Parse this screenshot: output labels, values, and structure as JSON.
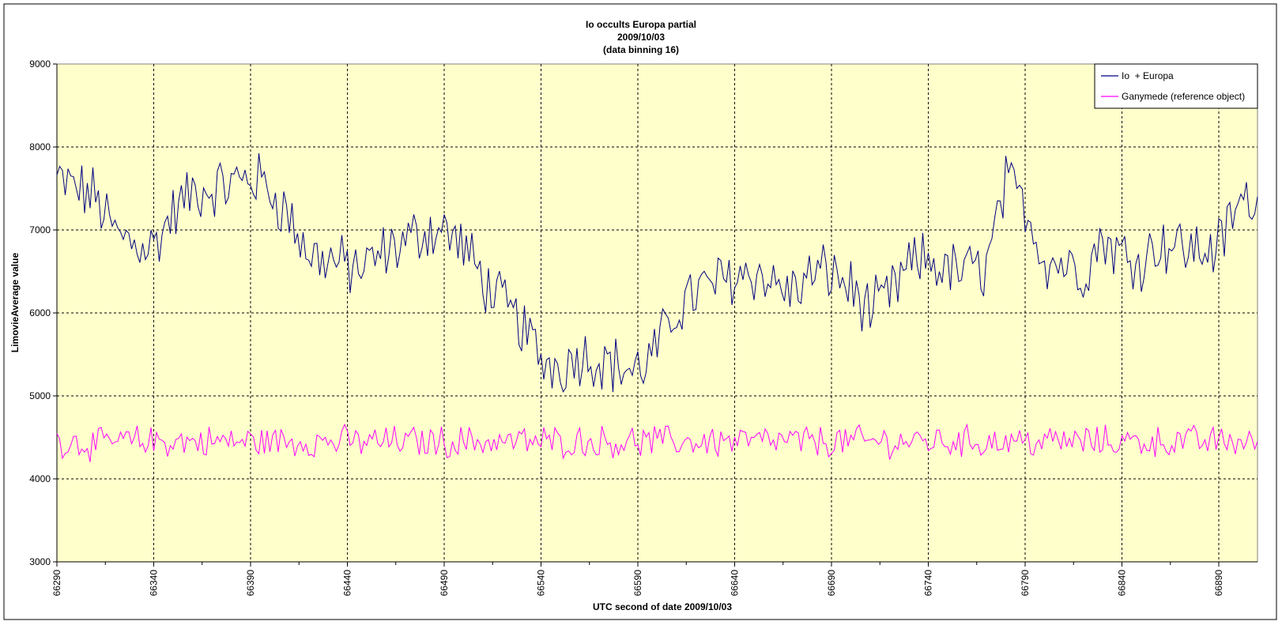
{
  "chart_data": {
    "type": "line",
    "title_lines": [
      "Io occults Europa partial",
      "2009/10/03",
      "(data binning 16)"
    ],
    "xlabel": "UTC second  of date 2009/10/03",
    "ylabel": "LimovieAverage value",
    "xlim": [
      66290,
      66910
    ],
    "ylim": [
      3000,
      9000
    ],
    "x_ticks": [
      66290,
      66340,
      66390,
      66440,
      66490,
      66540,
      66590,
      66640,
      66690,
      66740,
      66790,
      66840,
      66890
    ],
    "y_ticks": [
      3000,
      4000,
      5000,
      6000,
      7000,
      8000,
      9000
    ],
    "grid": true,
    "legend_position": "top-right",
    "colors": {
      "plot_bg": "#ffffcc",
      "io_europa": "#000080",
      "ganymede": "#ff00ff"
    },
    "series": [
      {
        "name": "Io  + Europa",
        "x_step": 10,
        "x": [
          66290,
          66300,
          66310,
          66320,
          66330,
          66340,
          66350,
          66360,
          66370,
          66380,
          66390,
          66400,
          66410,
          66420,
          66430,
          66440,
          66450,
          66460,
          66470,
          66480,
          66490,
          66500,
          66510,
          66520,
          66530,
          66540,
          66550,
          66560,
          66570,
          66580,
          66590,
          66600,
          66610,
          66620,
          66630,
          66640,
          66650,
          66660,
          66670,
          66680,
          66690,
          66700,
          66710,
          66720,
          66730,
          66740,
          66750,
          66760,
          66770,
          66780,
          66790,
          66800,
          66810,
          66820,
          66830,
          66840,
          66850,
          66860,
          66870,
          66880,
          66890,
          66900,
          66910
        ],
        "values": [
          7600,
          7500,
          7400,
          6950,
          6850,
          6800,
          7200,
          7450,
          7500,
          7550,
          7650,
          7500,
          7150,
          6700,
          6650,
          6550,
          6550,
          6750,
          6850,
          7000,
          7000,
          6800,
          6400,
          6100,
          5850,
          5450,
          5350,
          5500,
          5450,
          5350,
          5300,
          5550,
          6050,
          6250,
          6350,
          6450,
          6500,
          6350,
          6250,
          6450,
          6500,
          6300,
          6000,
          6200,
          6550,
          6650,
          6500,
          6500,
          6550,
          7550,
          7300,
          6650,
          6600,
          6500,
          6900,
          6700,
          6650,
          6850,
          6800,
          6750,
          6800,
          7300,
          7400
        ]
      },
      {
        "name": "Ganymede (reference object)",
        "x_step": 10,
        "x": [
          66290,
          66300,
          66310,
          66320,
          66330,
          66340,
          66350,
          66360,
          66370,
          66380,
          66390,
          66400,
          66410,
          66420,
          66430,
          66440,
          66450,
          66460,
          66470,
          66480,
          66490,
          66500,
          66510,
          66520,
          66530,
          66540,
          66550,
          66560,
          66570,
          66580,
          66590,
          66600,
          66610,
          66620,
          66630,
          66640,
          66650,
          66660,
          66670,
          66680,
          66690,
          66700,
          66710,
          66720,
          66730,
          66740,
          66750,
          66760,
          66770,
          66780,
          66790,
          66800,
          66810,
          66820,
          66830,
          66840,
          66850,
          66860,
          66870,
          66880,
          66890,
          66900,
          66910
        ],
        "values": [
          4450,
          4450,
          4400,
          4450,
          4450,
          4450,
          4450,
          4450,
          4450,
          4450,
          4450,
          4450,
          4450,
          4450,
          4450,
          4450,
          4450,
          4450,
          4450,
          4450,
          4450,
          4450,
          4450,
          4450,
          4450,
          4450,
          4450,
          4450,
          4450,
          4450,
          4450,
          4450,
          4450,
          4450,
          4450,
          4450,
          4450,
          4450,
          4450,
          4450,
          4450,
          4450,
          4450,
          4450,
          4450,
          4450,
          4450,
          4450,
          4450,
          4450,
          4450,
          4450,
          4450,
          4450,
          4450,
          4450,
          4450,
          4450,
          4450,
          4450,
          4450,
          4450,
          4450
        ]
      }
    ]
  }
}
